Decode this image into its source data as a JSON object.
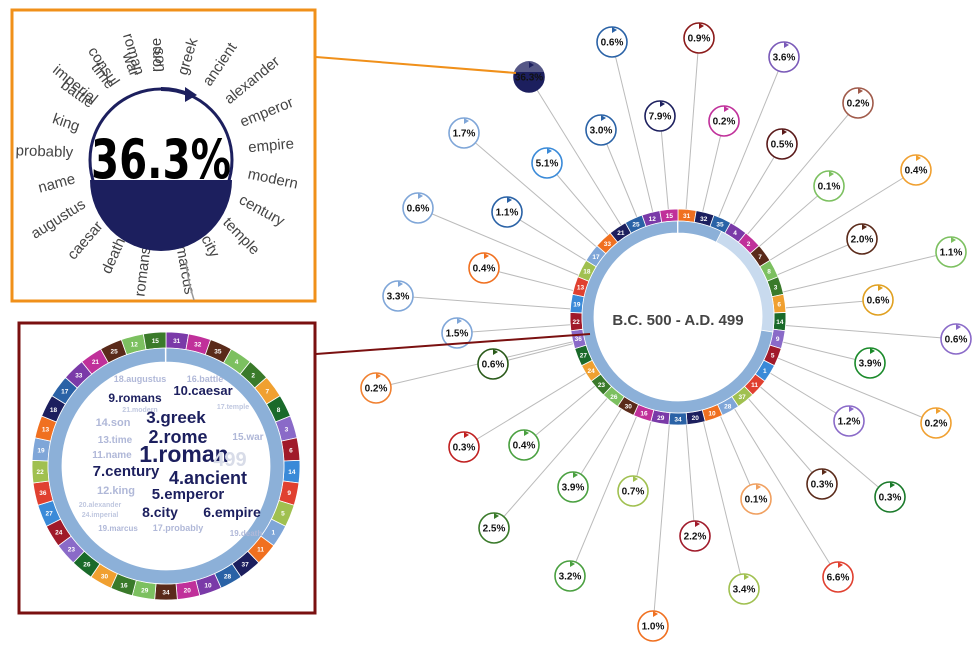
{
  "center_label": "B.C. 500 - A.D. 499",
  "highlighted_topic_value": "36.3%",
  "topic_bubbles": [
    {
      "label": "36.3%",
      "color": "#1c1f5e"
    },
    {
      "label": "0.6%",
      "color": "#2a62a6"
    },
    {
      "label": "0.9%",
      "color": "#8b1a1a"
    },
    {
      "label": "3.6%",
      "color": "#7a5ab8"
    },
    {
      "label": "0.2%",
      "color": "#a05a4a"
    },
    {
      "label": "1.7%",
      "color": "#7fa6d8"
    },
    {
      "label": "3.0%",
      "color": "#2a62a6"
    },
    {
      "label": "7.9%",
      "color": "#1c1f5e"
    },
    {
      "label": "0.2%",
      "color": "#c0309a"
    },
    {
      "label": "0.5%",
      "color": "#5a1a1a"
    },
    {
      "label": "0.4%",
      "color": "#f0a030"
    },
    {
      "label": "5.1%",
      "color": "#3a8ad8"
    },
    {
      "label": "0.1%",
      "color": "#7cc060"
    },
    {
      "label": "0.6%",
      "color": "#7fa6d8"
    },
    {
      "label": "1.1%",
      "color": "#2a62a6"
    },
    {
      "label": "2.0%",
      "color": "#5a2a1a"
    },
    {
      "label": "1.1%",
      "color": "#7cc060"
    },
    {
      "label": "0.4%",
      "color": "#f07020"
    },
    {
      "label": "3.3%",
      "color": "#7fa6d8"
    },
    {
      "label": "0.6%",
      "color": "#e0a020"
    },
    {
      "label": "1.5%",
      "color": "#7fa6d8"
    },
    {
      "label": "0.6%",
      "color": "#8a6ac8"
    },
    {
      "label": "3.9%",
      "color": "#1a8a2a"
    },
    {
      "label": "0.2%",
      "color": "#f08030"
    },
    {
      "label": "0.6%",
      "color": "#2a5a1a"
    },
    {
      "label": "1.2%",
      "color": "#8a6ac8"
    },
    {
      "label": "0.2%",
      "color": "#f0a030"
    },
    {
      "label": "0.3%",
      "color": "#c02020"
    },
    {
      "label": "0.4%",
      "color": "#4aa040"
    },
    {
      "label": "3.9%",
      "color": "#4aa040"
    },
    {
      "label": "0.7%",
      "color": "#a0c050"
    },
    {
      "label": "0.1%",
      "color": "#f0a060"
    },
    {
      "label": "0.3%",
      "color": "#5a2a1a"
    },
    {
      "label": "0.3%",
      "color": "#1a7a2a"
    },
    {
      "label": "2.5%",
      "color": "#3a7a2a"
    },
    {
      "label": "2.2%",
      "color": "#a01a2a"
    },
    {
      "label": "3.2%",
      "color": "#4aa040"
    },
    {
      "label": "3.4%",
      "color": "#a0c050"
    },
    {
      "label": "6.6%",
      "color": "#e04030"
    },
    {
      "label": "1.0%",
      "color": "#f07020"
    }
  ],
  "radial_keywords": [
    "imperial",
    "consul",
    "roman",
    "rome",
    "greek",
    "ancient",
    "alexander",
    "emperor",
    "empire",
    "modern",
    "century",
    "temple",
    "city",
    "marcus",
    "romans",
    "death",
    "caesar",
    "augustus",
    "name",
    "probably",
    "king",
    "battle",
    "time",
    "war",
    "son"
  ],
  "highlighted_keyword": "rome",
  "ring_numbers": [
    "31",
    "32",
    "35",
    "4",
    "2",
    "7",
    "8",
    "3",
    "6",
    "14",
    "9",
    "5",
    "1",
    "11",
    "37",
    "28",
    "10",
    "20",
    "34",
    "29",
    "16",
    "30",
    "26",
    "23",
    "24",
    "27",
    "36",
    "22",
    "19",
    "13",
    "18",
    "17",
    "33",
    "21",
    "25",
    "12",
    "15"
  ],
  "inset_keywords": [
    {
      "label": "16.battle"
    },
    {
      "label": "10.caesar"
    },
    {
      "label": "18.augustus"
    },
    {
      "label": "9.romans"
    },
    {
      "label": "21.modern"
    },
    {
      "label": "3.greek"
    },
    {
      "label": "17.temple"
    },
    {
      "label": "14.son"
    },
    {
      "label": "2.rome"
    },
    {
      "label": "15.war"
    },
    {
      "label": "13.time"
    },
    {
      "label": "1.roman"
    },
    {
      "label": "11.name"
    },
    {
      "label": "7.century"
    },
    {
      "label": "4.ancient"
    },
    {
      "label": "12.king"
    },
    {
      "label": "5.emperor"
    },
    {
      "label": "8.city"
    },
    {
      "label": "6.empire"
    },
    {
      "label": "19.marcus"
    },
    {
      "label": "17.probably"
    },
    {
      "label": "19.death"
    },
    {
      "label": "20.alexander"
    },
    {
      "label": "24.imperial"
    },
    {
      "label": "499"
    }
  ],
  "colors": {
    "zoom_border": "#f0901a",
    "inset_border": "#7a1010",
    "dark_navy": "#1c1f5e"
  }
}
